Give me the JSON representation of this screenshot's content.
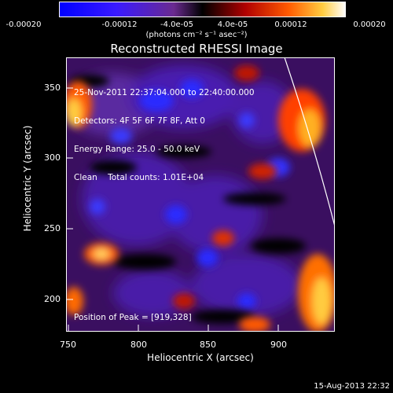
{
  "colorbar": {
    "tick_labels": [
      "-0.00020",
      "-0.00012",
      "-4.0e-05",
      "4.0e-05",
      "0.00012",
      "0.00020"
    ],
    "units": "(photons cm⁻² s⁻¹ asec⁻²)",
    "min": -0.0002,
    "max": 0.0002
  },
  "plot": {
    "title": "Reconstructed RHESSI Image",
    "xlabel": "Heliocentric X (arcsec)",
    "ylabel": "Heliocentric Y (arcsec)",
    "xticks": [
      "750",
      "800",
      "850",
      "900"
    ],
    "yticks": [
      "350",
      "300",
      "250",
      "200"
    ],
    "info_lines": [
      "25-Nov-2011 22:37:04.000 to 22:40:00.000",
      "Detectors: 4F 5F 6F 7F 8F, Att 0",
      "Energy Range: 25.0 - 50.0 keV",
      "Clean    Total counts: 1.01E+04"
    ],
    "peak_label": "Position of Peak = [919,328]"
  },
  "timestamp": "15-Aug-2013 22:32"
}
